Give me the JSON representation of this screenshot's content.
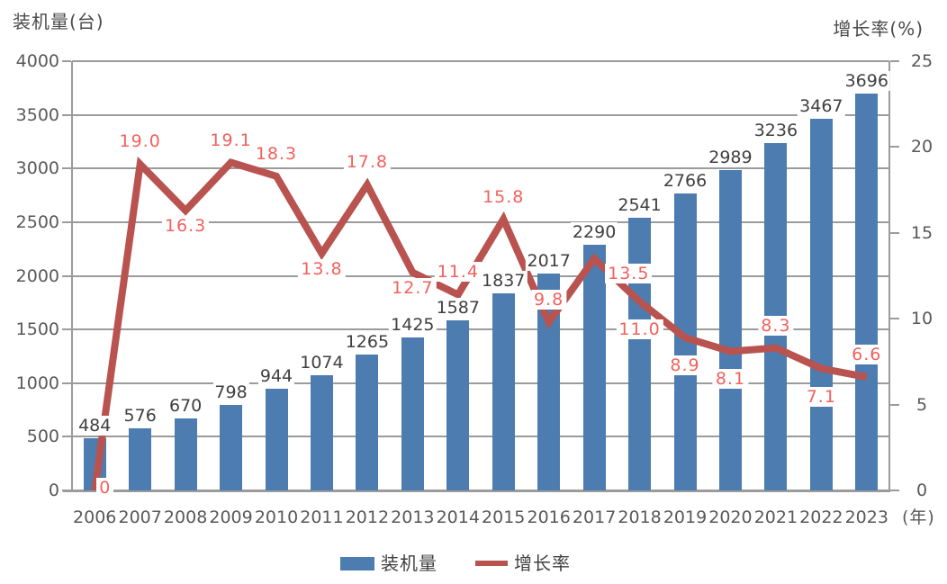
{
  "chart_data": {
    "type": "bar+line",
    "title": "",
    "categories": [
      "2006",
      "2007",
      "2008",
      "2009",
      "2010",
      "2011",
      "2012",
      "2013",
      "2014",
      "2015",
      "2016",
      "2017",
      "2018",
      "2019",
      "2020",
      "2021",
      "2022",
      "2023"
    ],
    "x_unit": "(年)",
    "series": [
      {
        "name": "装机量",
        "type": "bar",
        "axis": "left",
        "color": "#4d7cb1",
        "values": [
          484,
          576,
          670,
          798,
          944,
          1074,
          1265,
          1425,
          1587,
          1837,
          2017,
          2290,
          2541,
          2766,
          2989,
          3236,
          3467,
          3696
        ]
      },
      {
        "name": "增长率",
        "type": "line",
        "axis": "right",
        "color": "#b9534f",
        "label_color": "#f2615d",
        "values": [
          0,
          19.0,
          16.3,
          19.1,
          18.3,
          13.8,
          17.8,
          12.7,
          11.4,
          15.8,
          9.8,
          13.5,
          11.0,
          8.9,
          8.1,
          8.3,
          7.1,
          6.6
        ],
        "labels": [
          "0",
          "19.0",
          "16.3",
          "19.1",
          "18.3",
          "13.8",
          "17.8",
          "12.7",
          "11.4",
          "15.8",
          "9.8",
          "13.5",
          "11.0",
          "8.9",
          "8.1",
          "8.3",
          "7.1",
          "6.6"
        ]
      }
    ],
    "left_axis": {
      "title": "装机量(台)",
      "min": 0,
      "max": 4000,
      "ticks": [
        0,
        500,
        1000,
        1500,
        2000,
        2500,
        3000,
        3500,
        4000
      ]
    },
    "right_axis": {
      "title": "增长率(%)",
      "min": 0,
      "max": 25,
      "ticks": [
        0,
        5,
        10,
        15,
        20,
        25
      ]
    },
    "label_placement": [
      "at",
      "above",
      "below",
      "above",
      "above",
      "below",
      "above",
      "below",
      "above",
      "above",
      "above",
      "right",
      "belowfar",
      "belowfar",
      "belowfar",
      "above",
      "belowfar",
      "above"
    ],
    "grid": "horizontal",
    "legend_position": "bottom",
    "colors": {
      "grid": "#9b9b9b",
      "axis_text": "#595959",
      "bar_label_text": "#404040"
    }
  }
}
